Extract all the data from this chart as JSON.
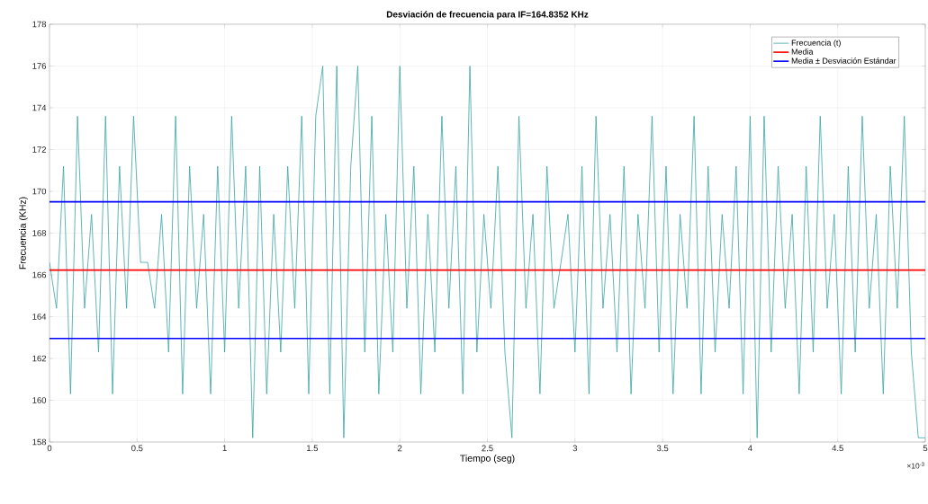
{
  "chart_data": {
    "type": "line",
    "title": "Desviación de frecuencia para IF=164.8352 KHz",
    "xlabel": "Tiempo (seg)",
    "ylabel": "Frecuencia (KHz)",
    "x": [
      0,
      0.04,
      0.08,
      0.12,
      0.16,
      0.2,
      0.24,
      0.28,
      0.32,
      0.36,
      0.4,
      0.44,
      0.48,
      0.52,
      0.56,
      0.6,
      0.64,
      0.68,
      0.72,
      0.76,
      0.8,
      0.84,
      0.88,
      0.92,
      0.96,
      1.0,
      1.04,
      1.08,
      1.12,
      1.16,
      1.2,
      1.24,
      1.28,
      1.32,
      1.36,
      1.4,
      1.44,
      1.48,
      1.52,
      1.56,
      1.6,
      1.64,
      1.68,
      1.72,
      1.76,
      1.8,
      1.84,
      1.88,
      1.92,
      1.96,
      2.0,
      2.04,
      2.08,
      2.12,
      2.16,
      2.2,
      2.24,
      2.28,
      2.32,
      2.36,
      2.4,
      2.44,
      2.48,
      2.52,
      2.56,
      2.6,
      2.64,
      2.68,
      2.72,
      2.76,
      2.8,
      2.84,
      2.88,
      2.92,
      2.96,
      3.0,
      3.04,
      3.08,
      3.12,
      3.16,
      3.2,
      3.24,
      3.28,
      3.32,
      3.36,
      3.4,
      3.44,
      3.48,
      3.52,
      3.56,
      3.6,
      3.64,
      3.68,
      3.72,
      3.76,
      3.8,
      3.84,
      3.88,
      3.92,
      3.96,
      4.0,
      4.04,
      4.08,
      4.12,
      4.16,
      4.2,
      4.24,
      4.28,
      4.32,
      4.36,
      4.4,
      4.44,
      4.48,
      4.52,
      4.56,
      4.6,
      4.64,
      4.68,
      4.72,
      4.76,
      4.8,
      4.84,
      4.88,
      4.92,
      4.96,
      5.0
    ],
    "series": [
      {
        "name": "Frecuencia (t)",
        "color": "#3aa3a3",
        "values": [
          166.6,
          164.4,
          171.2,
          160.3,
          173.6,
          164.4,
          168.9,
          162.3,
          173.6,
          160.3,
          171.2,
          164.4,
          173.6,
          166.6,
          166.6,
          164.4,
          168.9,
          162.3,
          173.6,
          160.3,
          171.2,
          164.4,
          168.9,
          160.3,
          171.2,
          162.3,
          173.6,
          164.4,
          171.2,
          158.2,
          171.2,
          160.3,
          168.9,
          162.3,
          171.2,
          164.4,
          173.6,
          160.3,
          173.6,
          176.0,
          160.3,
          176.0,
          158.2,
          171.2,
          176.0,
          162.3,
          173.6,
          160.3,
          168.9,
          162.3,
          176.0,
          164.4,
          171.2,
          160.3,
          168.9,
          162.3,
          173.6,
          164.4,
          171.2,
          160.3,
          176.0,
          162.3,
          168.9,
          164.4,
          171.2,
          162.3,
          158.2,
          173.6,
          164.4,
          168.9,
          160.3,
          171.2,
          164.4,
          166.6,
          168.9,
          162.3,
          171.2,
          160.3,
          173.6,
          164.4,
          168.9,
          162.3,
          171.2,
          160.3,
          168.9,
          164.4,
          173.6,
          162.3,
          171.2,
          160.3,
          168.9,
          164.4,
          173.6,
          160.3,
          171.2,
          162.3,
          168.9,
          164.4,
          171.2,
          160.3,
          173.6,
          158.2,
          173.6,
          162.3,
          171.2,
          164.4,
          168.9,
          160.3,
          171.2,
          162.3,
          173.6,
          164.4,
          168.9,
          160.3,
          171.2,
          162.3,
          173.6,
          164.4,
          168.9,
          160.3,
          171.2,
          164.4,
          173.6,
          162.3,
          158.2,
          158.2
        ]
      }
    ],
    "ref_lines": [
      {
        "axis": "y",
        "value": 166.23,
        "label": "Media",
        "color": "#ff0000"
      },
      {
        "axis": "y",
        "value": 169.5,
        "label": "Media ± Desviación Estándar",
        "color": "#0000ff"
      },
      {
        "axis": "y",
        "value": 162.96,
        "color": "#0000ff"
      }
    ],
    "xlim": [
      0,
      5
    ],
    "ylim": [
      158,
      178
    ],
    "xticks": [
      0,
      0.5,
      1,
      1.5,
      2,
      2.5,
      3,
      3.5,
      4,
      4.5,
      5
    ],
    "yticks": [
      158,
      160,
      162,
      164,
      166,
      168,
      170,
      172,
      174,
      176,
      178
    ],
    "annotations": [
      "×10$^{-3}$"
    ],
    "grid": true,
    "legend": "top right"
  }
}
